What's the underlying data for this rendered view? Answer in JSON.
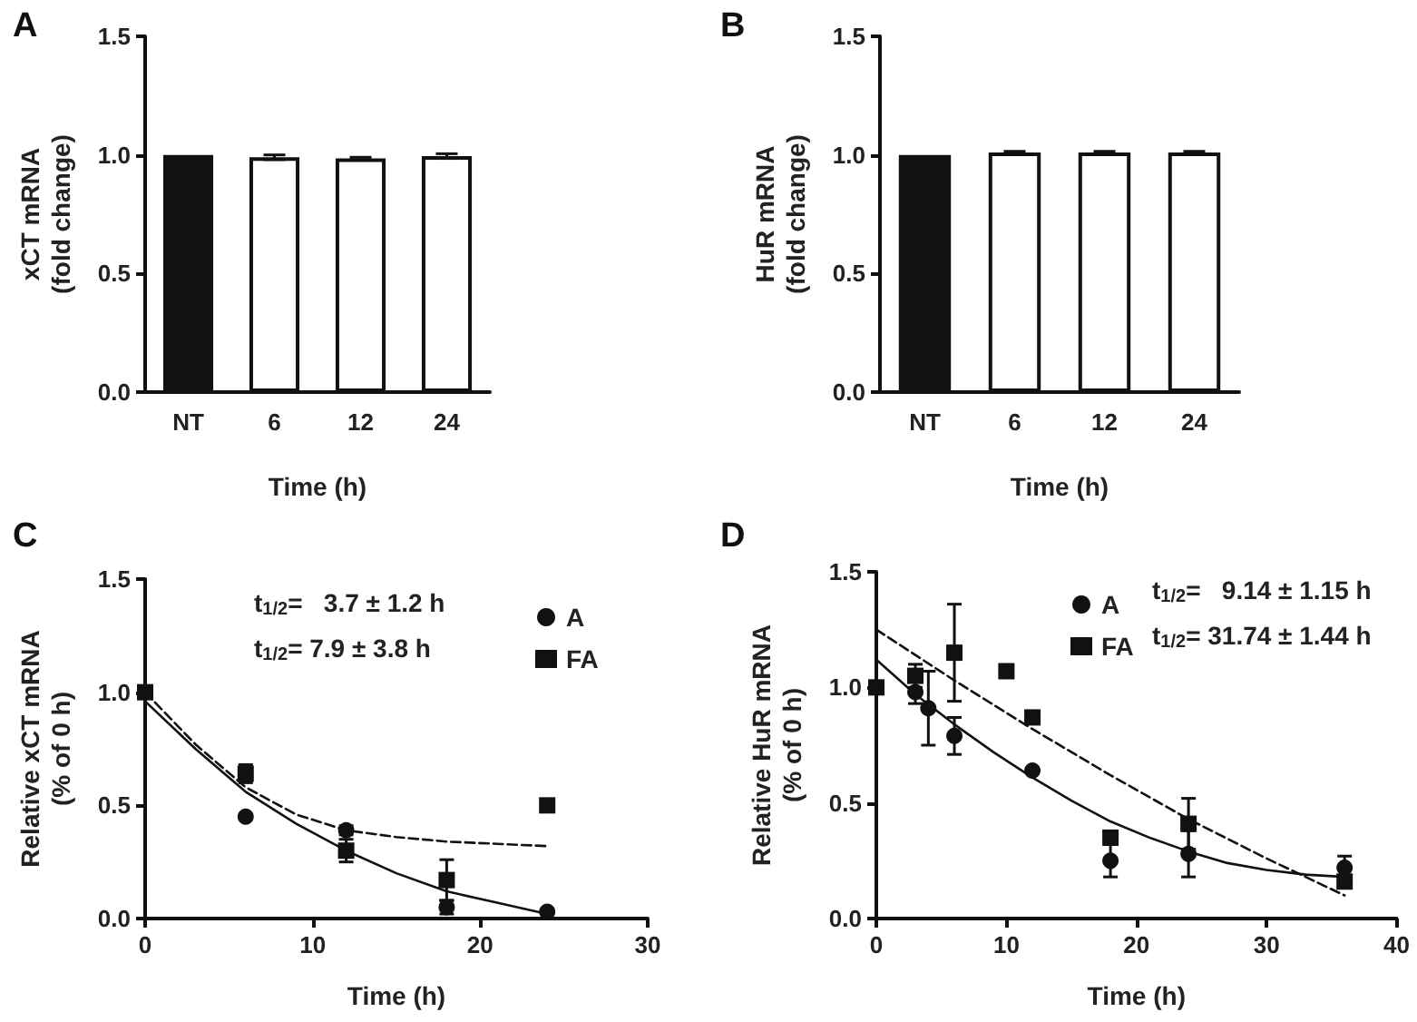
{
  "chart_data": [
    {
      "type": "bar",
      "title": "A",
      "xlabel": "Time (h)",
      "ylabel": "xCT mRNA\n(fold change)",
      "categories": [
        "NT",
        "6",
        "12",
        "24"
      ],
      "values": [
        1.0,
        0.99,
        0.985,
        0.995
      ],
      "colors": [
        "#111111",
        "#ffffff",
        "#ffffff",
        "#ffffff"
      ],
      "errors": [
        null,
        0.01,
        0.005,
        0.01
      ],
      "ylim": [
        0,
        1.5
      ],
      "yticks": [
        {
          "value": 0,
          "label": "0.0"
        },
        {
          "value": 0.5,
          "label": "0.5"
        },
        {
          "value": 1,
          "label": "1.0"
        },
        {
          "value": 1.5,
          "label": "1.5"
        }
      ]
    },
    {
      "type": "bar",
      "title": "B",
      "xlabel": "Time (h)",
      "ylabel": "HuR mRNA\n(fold change)",
      "categories": [
        "NT",
        "6",
        "12",
        "24"
      ],
      "values": [
        1.0,
        1.01,
        1.01,
        1.01
      ],
      "colors": [
        "#111111",
        "#ffffff",
        "#ffffff",
        "#ffffff"
      ],
      "errors": [
        null,
        0.005,
        0.005,
        0.005
      ],
      "ylim": [
        0,
        1.5
      ],
      "yticks": [
        {
          "value": 0,
          "label": "0.0"
        },
        {
          "value": 0.5,
          "label": "0.5"
        },
        {
          "value": 1,
          "label": "1.0"
        },
        {
          "value": 1.5,
          "label": "1.5"
        }
      ]
    },
    {
      "type": "scatter",
      "title": "C",
      "xlabel": "Time (h)",
      "ylabel": "Relative xCT mRNA\n(% of 0 h)",
      "legend": "top right",
      "annotations": [
        "t$_{1/2}$=   3.7 ± 1.2 h",
        "t$_{1/2}$= 7.9 ± 3.8 h"
      ],
      "xlim": [
        0,
        30
      ],
      "xticks": [
        0,
        10,
        20,
        30
      ],
      "ylim": [
        0,
        1.5
      ],
      "yticks": [
        {
          "value": 0,
          "label": "0.0"
        },
        {
          "value": 0.5,
          "label": "0.5"
        },
        {
          "value": 1,
          "label": "1.0"
        },
        {
          "value": 1.5,
          "label": "1.5"
        }
      ],
      "series": [
        {
          "name": "A",
          "color": "#111111",
          "marker": "circle",
          "x": [
            6,
            12,
            18,
            24
          ],
          "values": [
            0.45,
            0.39,
            0.05,
            0.03
          ],
          "errors": [
            null,
            0.02,
            0.03,
            null
          ]
        },
        {
          "name": "FA",
          "color": "#111111",
          "marker": "square",
          "x": [
            0,
            6,
            12,
            18,
            24
          ],
          "values": [
            1.0,
            0.64,
            0.3,
            0.17,
            0.5
          ],
          "errors": [
            null,
            0.04,
            0.05,
            0.09,
            null
          ]
        },
        {
          "type": "line",
          "color": "#111111",
          "line_style": "solid",
          "x": [
            0,
            3,
            6,
            9,
            12,
            15,
            18,
            21,
            24
          ],
          "values": [
            0.96,
            0.75,
            0.56,
            0.42,
            0.3,
            0.2,
            0.12,
            0.07,
            0.02
          ]
        },
        {
          "type": "line",
          "color": "#111111",
          "line_style": "dashed",
          "x": [
            0,
            3,
            6,
            9,
            12,
            15,
            18,
            21,
            24
          ],
          "values": [
            1.0,
            0.77,
            0.58,
            0.46,
            0.39,
            0.36,
            0.34,
            0.33,
            0.32
          ]
        }
      ]
    },
    {
      "type": "scatter",
      "title": "D",
      "xlabel": "Time (h)",
      "ylabel": "Relative HuR mRNA\n(% of 0 h)",
      "legend": "top",
      "annotations": [
        "t$_{1/2}$=   9.14 ± 1.15 h",
        "t$_{1/2}$= 31.74 ± 1.44 h"
      ],
      "xlim": [
        0,
        40
      ],
      "xticks": [
        0,
        10,
        20,
        30,
        40
      ],
      "ylim": [
        0,
        1.5
      ],
      "yticks": [
        {
          "value": 0,
          "label": "0.0"
        },
        {
          "value": 0.5,
          "label": "0.5"
        },
        {
          "value": 1,
          "label": "1.0"
        },
        {
          "value": 1.5,
          "label": "1.5"
        }
      ],
      "series": [
        {
          "name": "A",
          "color": "#111111",
          "marker": "circle",
          "x": [
            3,
            4,
            6,
            12,
            18,
            24,
            36
          ],
          "values": [
            0.98,
            0.91,
            0.79,
            0.64,
            0.25,
            0.28,
            0.22
          ],
          "errors": [
            0.05,
            0.16,
            0.08,
            null,
            0.07,
            0.1,
            0.05
          ]
        },
        {
          "name": "FA",
          "color": "#111111",
          "marker": "square",
          "x": [
            0,
            3,
            6,
            10,
            12,
            18,
            24,
            36
          ],
          "values": [
            1.0,
            1.05,
            1.15,
            1.07,
            0.87,
            0.35,
            0.41,
            0.16
          ],
          "errors": [
            null,
            0.05,
            0.21,
            null,
            null,
            null,
            0.11,
            null
          ]
        },
        {
          "type": "line",
          "color": "#111111",
          "line_style": "solid",
          "x": [
            0,
            3,
            6,
            9,
            12,
            15,
            18,
            21,
            24,
            27,
            30,
            33,
            36
          ],
          "values": [
            1.12,
            0.97,
            0.84,
            0.72,
            0.61,
            0.51,
            0.42,
            0.35,
            0.29,
            0.24,
            0.21,
            0.19,
            0.18
          ]
        },
        {
          "type": "line",
          "color": "#111111",
          "line_style": "dashed",
          "x": [
            0,
            6,
            12,
            18,
            24,
            30,
            36
          ],
          "values": [
            1.25,
            1.03,
            0.82,
            0.62,
            0.43,
            0.26,
            0.1
          ]
        }
      ]
    }
  ]
}
